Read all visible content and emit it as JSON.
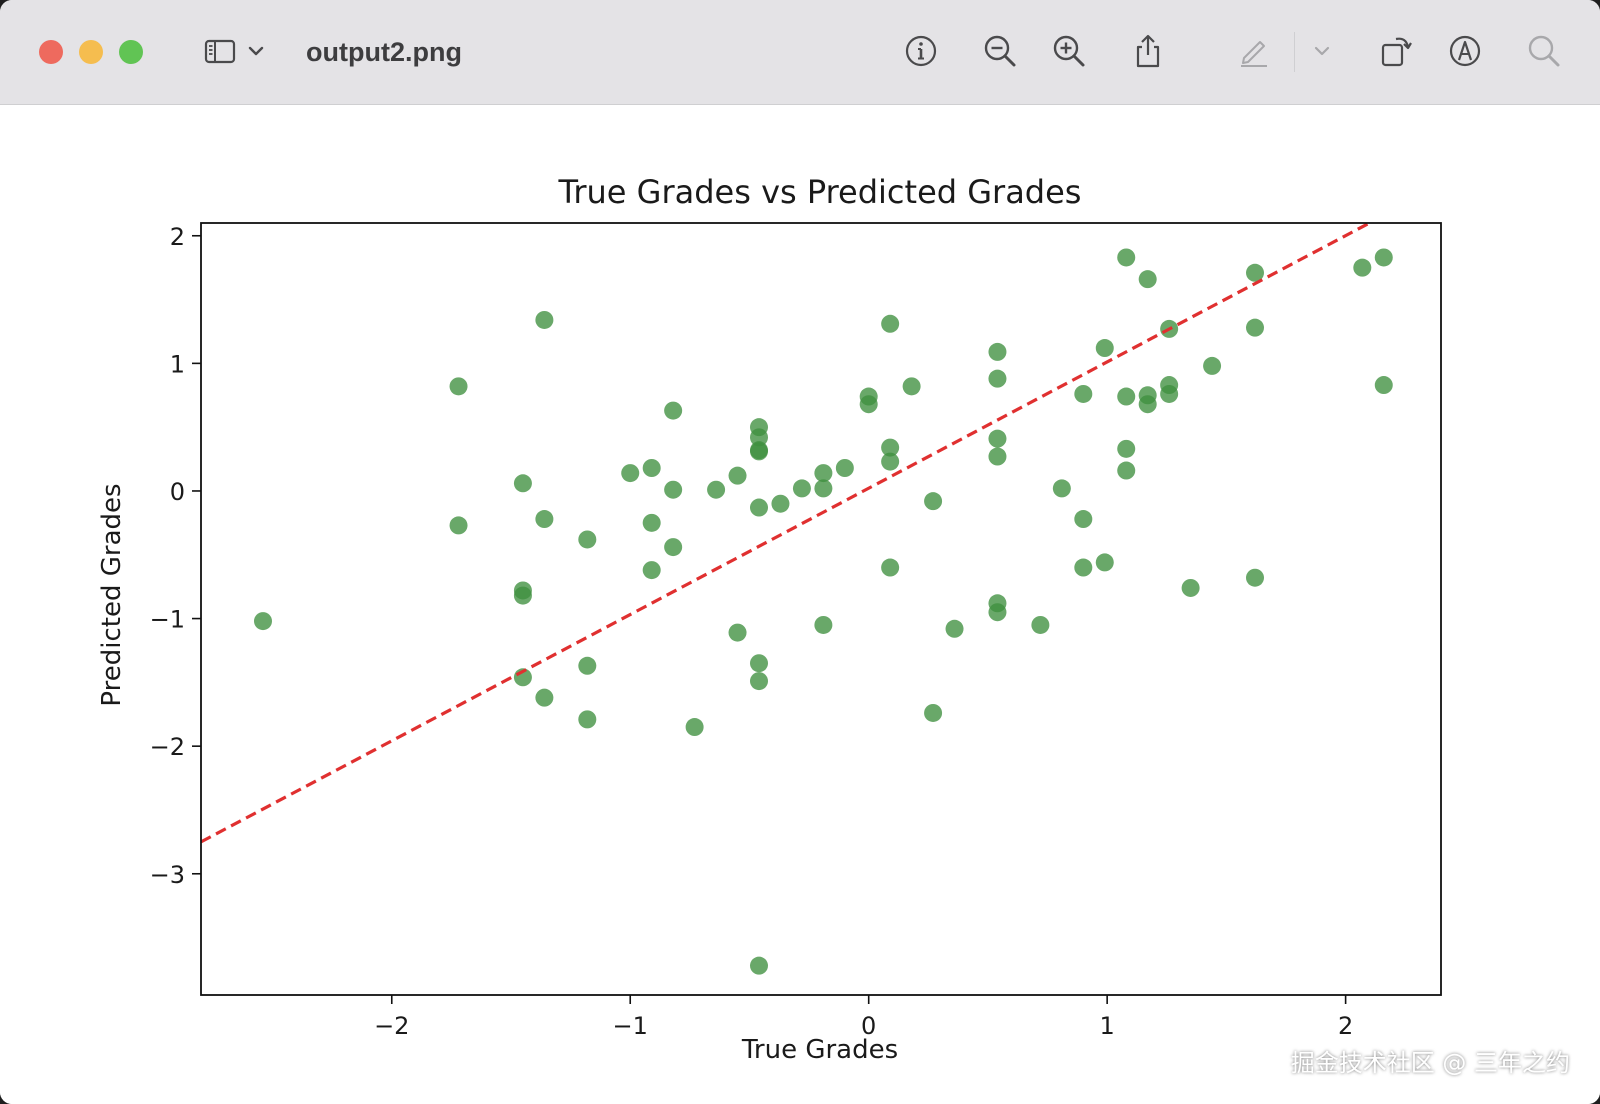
{
  "window": {
    "title": "output2.png"
  },
  "toolbar": {
    "icons": [
      "sidebar-icon",
      "chevron-down-icon",
      "info-icon",
      "zoom-out-icon",
      "zoom-in-icon",
      "share-icon",
      "markup-pen-icon",
      "chevron-down-icon",
      "rotate-icon",
      "markup-circle-icon",
      "search-icon"
    ]
  },
  "watermark": "掘金技术社区 @ 三年之约",
  "colors": {
    "points": "#3f8f3f",
    "fit_line": "#e03030",
    "traffic_close": "#ee6a5e",
    "traffic_min": "#f5bd4f",
    "traffic_max": "#61c454"
  },
  "chart_data": {
    "type": "scatter",
    "title": "True Grades vs Predicted Grades",
    "xlabel": "True Grades",
    "ylabel": "Predicted Grades",
    "xlim": [
      -2.8,
      2.4
    ],
    "ylim": [
      -3.95,
      2.1
    ],
    "xticks": [
      -2,
      -1,
      0,
      1,
      2
    ],
    "xtick_labels": [
      "−2",
      "−1",
      "0",
      "1",
      "2"
    ],
    "yticks": [
      2,
      1,
      0,
      -1,
      -2,
      -3
    ],
    "ytick_labels": [
      "2",
      "1",
      "0",
      "−1",
      "−2",
      "−3"
    ],
    "grid": false,
    "fit_line": {
      "style": "dashed",
      "x": [
        -2.8,
        2.1
      ],
      "y": [
        -2.75,
        2.1
      ]
    },
    "points": [
      [
        -2.54,
        -1.02
      ],
      [
        -1.72,
        0.82
      ],
      [
        -1.72,
        -0.27
      ],
      [
        -1.45,
        0.06
      ],
      [
        -1.45,
        -0.78
      ],
      [
        -1.45,
        -0.82
      ],
      [
        -1.45,
        -1.46
      ],
      [
        -1.36,
        1.34
      ],
      [
        -1.36,
        -0.22
      ],
      [
        -1.36,
        -1.62
      ],
      [
        -1.18,
        -0.38
      ],
      [
        -1.18,
        -1.37
      ],
      [
        -1.18,
        -1.79
      ],
      [
        -1.0,
        0.14
      ],
      [
        -0.91,
        0.18
      ],
      [
        -0.91,
        -0.25
      ],
      [
        -0.91,
        -0.62
      ],
      [
        -0.82,
        0.63
      ],
      [
        -0.82,
        0.01
      ],
      [
        -0.82,
        -0.44
      ],
      [
        -0.73,
        -1.85
      ],
      [
        -0.64,
        0.01
      ],
      [
        -0.55,
        0.12
      ],
      [
        -0.55,
        -1.11
      ],
      [
        -0.46,
        0.5
      ],
      [
        -0.46,
        0.42
      ],
      [
        -0.46,
        0.32
      ],
      [
        -0.46,
        0.31
      ],
      [
        -0.46,
        -0.13
      ],
      [
        -0.46,
        -1.35
      ],
      [
        -0.46,
        -1.49
      ],
      [
        -0.46,
        -3.72
      ],
      [
        -0.37,
        -0.1
      ],
      [
        -0.28,
        0.02
      ],
      [
        -0.19,
        0.14
      ],
      [
        -0.19,
        0.02
      ],
      [
        -0.19,
        -1.05
      ],
      [
        -0.1,
        0.18
      ],
      [
        0.0,
        0.74
      ],
      [
        0.0,
        0.68
      ],
      [
        0.09,
        1.31
      ],
      [
        0.09,
        0.34
      ],
      [
        0.09,
        0.23
      ],
      [
        0.09,
        -0.6
      ],
      [
        0.18,
        0.82
      ],
      [
        0.27,
        -0.08
      ],
      [
        0.27,
        -1.74
      ],
      [
        0.36,
        -1.08
      ],
      [
        0.54,
        1.09
      ],
      [
        0.54,
        0.88
      ],
      [
        0.54,
        0.41
      ],
      [
        0.54,
        0.27
      ],
      [
        0.54,
        -0.88
      ],
      [
        0.54,
        -0.95
      ],
      [
        0.72,
        -1.05
      ],
      [
        0.81,
        0.02
      ],
      [
        0.9,
        0.76
      ],
      [
        0.9,
        -0.22
      ],
      [
        0.9,
        -0.6
      ],
      [
        0.99,
        1.12
      ],
      [
        0.99,
        -0.56
      ],
      [
        1.08,
        1.83
      ],
      [
        1.08,
        0.74
      ],
      [
        1.08,
        0.33
      ],
      [
        1.08,
        0.16
      ],
      [
        1.17,
        1.66
      ],
      [
        1.17,
        0.75
      ],
      [
        1.17,
        0.68
      ],
      [
        1.26,
        1.27
      ],
      [
        1.26,
        0.83
      ],
      [
        1.26,
        0.76
      ],
      [
        1.35,
        -0.76
      ],
      [
        1.44,
        0.98
      ],
      [
        1.62,
        1.71
      ],
      [
        1.62,
        1.28
      ],
      [
        1.62,
        -0.68
      ],
      [
        2.07,
        1.75
      ],
      [
        2.16,
        1.83
      ],
      [
        2.16,
        0.83
      ]
    ]
  }
}
